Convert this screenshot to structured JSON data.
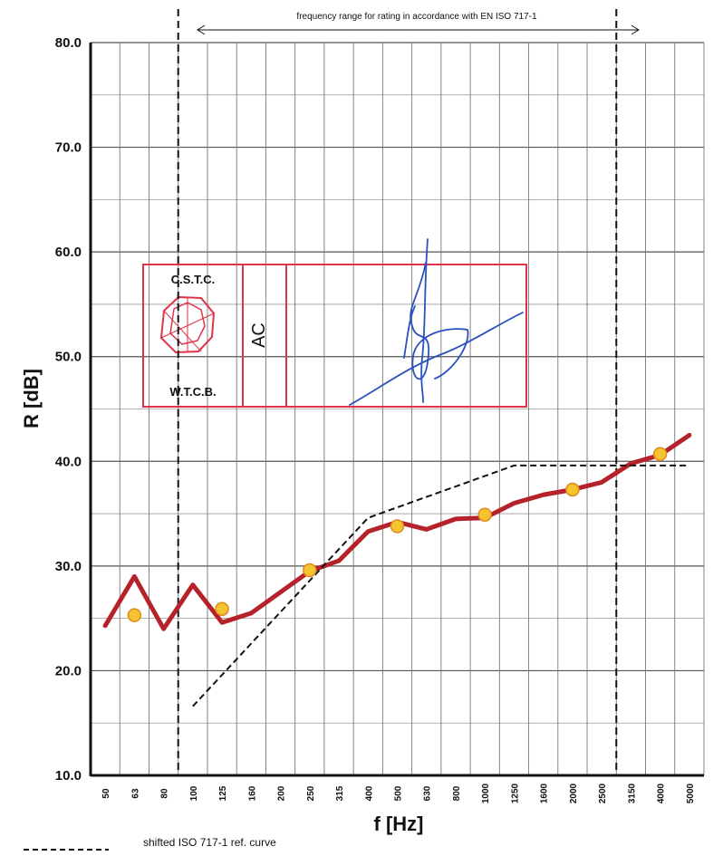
{
  "chart_data": {
    "type": "line",
    "title": "",
    "xlabel": "f [Hz]",
    "ylabel": "R [dB]",
    "ylim": [
      10.0,
      80.0
    ],
    "yticks": [
      "10.0",
      "20.0",
      "30.0",
      "40.0",
      "50.0",
      "60.0",
      "70.0",
      "80.0"
    ],
    "categories": [
      "50",
      "63",
      "80",
      "100",
      "125",
      "160",
      "200",
      "250",
      "315",
      "400",
      "500",
      "630",
      "800",
      "1000",
      "1250",
      "1600",
      "2000",
      "2500",
      "3150",
      "4000",
      "5000"
    ],
    "x_scale": "log (one-third octave bands)",
    "grid": true,
    "series": [
      {
        "kind": "measured",
        "color": "#b5222a",
        "values": [
          24.3,
          29.0,
          24.0,
          28.2,
          24.6,
          25.5,
          27.5,
          29.5,
          30.5,
          33.3,
          34.2,
          33.5,
          34.5,
          34.6,
          36.0,
          36.8,
          37.3,
          38.0,
          39.8,
          40.6,
          42.5
        ]
      },
      {
        "kind": "octave-band values",
        "color": "#f4c430",
        "x": [
          "63",
          "125",
          "250",
          "500",
          "1000",
          "2000",
          "4000"
        ],
        "values": [
          25.3,
          25.9,
          29.6,
          33.8,
          34.9,
          37.3,
          40.7
        ]
      },
      {
        "name": "shifted ISO 717-1 ref. curve",
        "color": "#111111",
        "dashed": true,
        "x": [
          "100",
          "125",
          "160",
          "200",
          "250",
          "315",
          "400",
          "500",
          "630",
          "800",
          "1000",
          "1250",
          "1600",
          "2000",
          "2500",
          "3150",
          "4000",
          "5000"
        ],
        "values": [
          16.6,
          19.6,
          22.6,
          25.6,
          28.6,
          31.6,
          34.6,
          35.6,
          36.6,
          37.6,
          38.6,
          39.6,
          39.6,
          39.6,
          39.6,
          39.6,
          39.6,
          39.6
        ]
      }
    ],
    "annotations": {
      "range_text": "frequency range for rating in accordance with EN ISO 717-1",
      "range_from": "100",
      "range_to": "3150"
    },
    "legend": {
      "placement": "bottom-left",
      "entries": [
        "shifted ISO 717-1 ref. curve"
      ]
    }
  },
  "stamp": {
    "color": "#e0334a",
    "top_text": "C.S.T.C.",
    "bottom_text": "W.T.C.B.",
    "middle_text": "AC"
  },
  "signature_color": "#2a52be"
}
